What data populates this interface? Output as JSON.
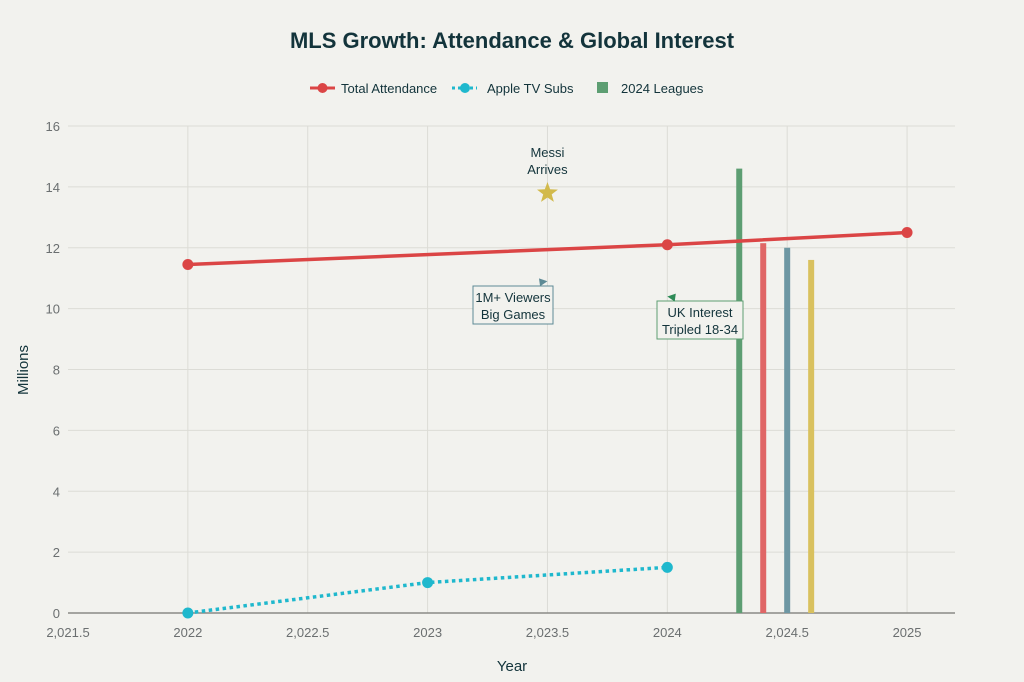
{
  "chart_data": {
    "type": "line",
    "title": "MLS Growth: Attendance & Global Interest",
    "xlabel": "Year",
    "ylabel": "Millions",
    "xlim": [
      2021.5,
      2025.2
    ],
    "ylim": [
      0,
      16
    ],
    "grid": true,
    "x_ticks": [
      2021.5,
      2022,
      2022.5,
      2023,
      2023.5,
      2024,
      2024.5,
      2025
    ],
    "x_tick_labels": [
      "2,021.5",
      "2022",
      "2,022.5",
      "2023",
      "2,023.5",
      "2024",
      "2,024.5",
      "2025"
    ],
    "y_ticks": [
      0,
      2,
      4,
      6,
      8,
      10,
      12,
      14,
      16
    ],
    "y_tick_labels": [
      "0",
      "2",
      "4",
      "6",
      "8",
      "10",
      "12",
      "14",
      "16"
    ],
    "legend_position": "top-center",
    "legend": [
      {
        "name": "Total Attendance",
        "color": "#db4545",
        "style": "line-marker"
      },
      {
        "name": "Apple TV Subs",
        "color": "#1fb8cd",
        "style": "dotted-marker"
      },
      {
        "name": "2024 Leagues",
        "color": "#5d9e72",
        "style": "bar"
      }
    ],
    "series": [
      {
        "name": "Total Attendance",
        "type": "line",
        "color": "#db4545",
        "x": [
          2022,
          2024,
          2025
        ],
        "y": [
          11.45,
          12.1,
          12.5
        ]
      },
      {
        "name": "Apple TV Subs",
        "type": "line-dotted",
        "color": "#1fb8cd",
        "x": [
          2022,
          2023,
          2024
        ],
        "y": [
          0,
          1.0,
          1.5
        ]
      },
      {
        "name": "2024 Leagues",
        "type": "bar",
        "x": [
          2024.3,
          2024.4,
          2024.5,
          2024.6
        ],
        "y": [
          14.6,
          12.15,
          12.0,
          11.6
        ],
        "colors": [
          "#5d9e72",
          "#e06666",
          "#6e97a3",
          "#d9c15e"
        ]
      }
    ],
    "annotations": [
      {
        "name": "messi-arrives",
        "text": [
          "Messi",
          "Arrives"
        ],
        "x": 2023.5,
        "y": 13.8,
        "marker": "star",
        "color": "#d2ba4c"
      },
      {
        "name": "viewers",
        "text": [
          "1M+ Viewers",
          "Big Games"
        ],
        "x": 2023.5,
        "y": 10.9,
        "arrow_color": "#5d8a95",
        "border_color": "#5d8a95"
      },
      {
        "name": "uk-interest",
        "text": [
          "UK Interest",
          "Tripled 18-34"
        ],
        "x": 2024,
        "y": 10.4,
        "arrow_color": "#2e8b57",
        "border_color": "#5d9e72"
      }
    ]
  }
}
